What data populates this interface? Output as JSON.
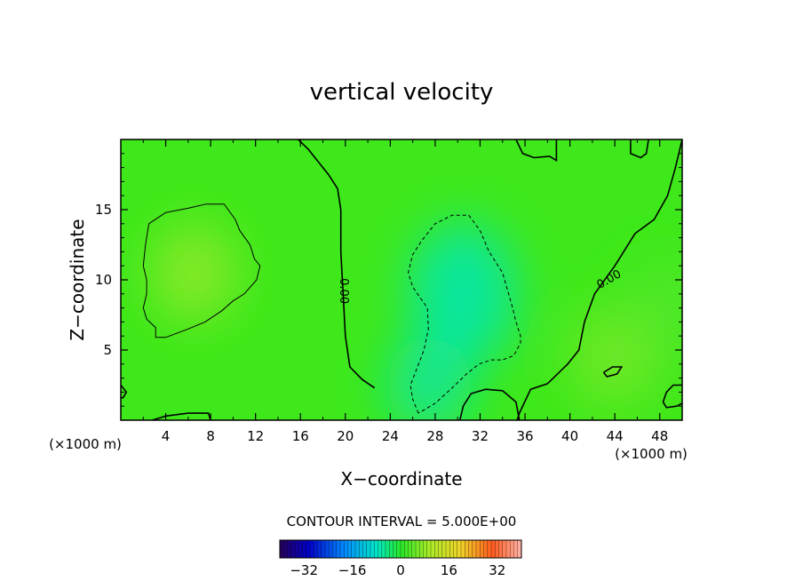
{
  "chart_data": {
    "type": "heatmap",
    "title": "vertical velocity",
    "xlabel": "X−coordinate",
    "ylabel": "Z−coordinate",
    "x_unit": "(×1000 m)",
    "z_unit": "(×1000 m)",
    "xlim": [
      0,
      50
    ],
    "ylim": [
      0,
      20
    ],
    "x_ticks": [
      4,
      8,
      12,
      16,
      20,
      24,
      28,
      32,
      36,
      40,
      44,
      48
    ],
    "x_tick_labels": [
      "4",
      "8",
      "12",
      "16",
      "20",
      "24",
      "28",
      "32",
      "36",
      "40",
      "44",
      "48"
    ],
    "y_ticks": [
      5,
      10,
      15
    ],
    "y_tick_labels": [
      "5",
      "10",
      "15"
    ],
    "contour_interval_text": "CONTOUR INTERVAL = 5.000E+00",
    "contour_labels": [
      {
        "text": "0.00",
        "x": 19.8,
        "z": 9.2,
        "angle": 90
      },
      {
        "text": "0.00",
        "x": 43.5,
        "z": 10.0,
        "angle": -30
      }
    ],
    "contours": [
      {
        "level": 0,
        "style": "solid",
        "points": [
          [
            15.8,
            20
          ],
          [
            16.7,
            19.3
          ],
          [
            17.5,
            18.5
          ],
          [
            18.5,
            17.5
          ],
          [
            19.3,
            16.5
          ],
          [
            19.6,
            15.0
          ],
          [
            19.6,
            12.0
          ],
          [
            19.8,
            9.0
          ],
          [
            20.0,
            6.0
          ],
          [
            20.4,
            3.8
          ],
          [
            21.5,
            2.9
          ],
          [
            22.6,
            2.3
          ]
        ]
      },
      {
        "level": 0,
        "style": "solid",
        "points": [
          [
            35.2,
            20
          ],
          [
            35.8,
            19.0
          ],
          [
            36.8,
            18.7
          ],
          [
            38.2,
            18.8
          ],
          [
            38.8,
            18.5
          ],
          [
            38.8,
            20
          ]
        ]
      },
      {
        "level": 0,
        "style": "solid",
        "points": [
          [
            45.4,
            20
          ],
          [
            45.4,
            19.0
          ],
          [
            46.3,
            18.7
          ],
          [
            46.8,
            19.0
          ],
          [
            47.0,
            20
          ]
        ]
      },
      {
        "level": 0,
        "style": "solid",
        "points": [
          [
            50,
            20
          ],
          [
            49.4,
            18.0
          ],
          [
            48.7,
            16.0
          ],
          [
            47.5,
            14.3
          ],
          [
            45.8,
            13.3
          ],
          [
            44.0,
            11.0
          ],
          [
            42.2,
            9.0
          ],
          [
            41.3,
            7.0
          ],
          [
            40.8,
            5.0
          ],
          [
            39.8,
            4.0
          ],
          [
            38.0,
            2.6
          ],
          [
            36.5,
            2.2
          ],
          [
            35.5,
            0.5
          ],
          [
            35.3,
            0
          ]
        ]
      },
      {
        "level": 5,
        "style": "solid",
        "points": [
          [
            2.5,
            14.0
          ],
          [
            4.0,
            14.8
          ],
          [
            6.0,
            15.1
          ],
          [
            7.6,
            15.4
          ],
          [
            9.2,
            15.4
          ],
          [
            10.2,
            14.3
          ],
          [
            10.6,
            13.5
          ],
          [
            11.5,
            12.5
          ],
          [
            11.9,
            11.5
          ],
          [
            12.4,
            11.0
          ],
          [
            12.1,
            10.0
          ],
          [
            11.0,
            9.0
          ],
          [
            10.0,
            8.5
          ],
          [
            9.0,
            7.8
          ],
          [
            7.5,
            7.0
          ],
          [
            6.0,
            6.5
          ],
          [
            4.0,
            5.9
          ],
          [
            3.1,
            5.9
          ],
          [
            3.1,
            6.6
          ],
          [
            2.3,
            7.2
          ],
          [
            2.0,
            8.0
          ],
          [
            2.3,
            9.0
          ],
          [
            2.3,
            10.0
          ],
          [
            2.0,
            11.0
          ],
          [
            2.2,
            12.5
          ],
          [
            2.5,
            14.0
          ]
        ]
      },
      {
        "level": 0,
        "style": "solid",
        "points": [
          [
            50,
            2.5
          ],
          [
            49.2,
            2.5
          ],
          [
            48.6,
            2.0
          ],
          [
            48.3,
            1.3
          ],
          [
            48.6,
            0.9
          ],
          [
            49.5,
            1.0
          ],
          [
            50,
            1.2
          ]
        ]
      },
      {
        "level": 0,
        "style": "solid",
        "points": [
          [
            0,
            2.5
          ],
          [
            0.5,
            2.0
          ],
          [
            0.2,
            1.6
          ],
          [
            0,
            1.6
          ]
        ]
      },
      {
        "level": 0,
        "style": "solid",
        "points": [
          [
            2.8,
            0
          ],
          [
            4.0,
            0.3
          ],
          [
            6.0,
            0.5
          ],
          [
            7.8,
            0.5
          ],
          [
            8.0,
            0
          ]
        ]
      },
      {
        "level": 0,
        "style": "solid",
        "points": [
          [
            30.2,
            0
          ],
          [
            30.5,
            1.0
          ],
          [
            31.2,
            1.9
          ],
          [
            32.5,
            2.2
          ],
          [
            34.0,
            2.1
          ],
          [
            35.2,
            1.3
          ],
          [
            35.5,
            0
          ]
        ]
      },
      {
        "level": 0,
        "style": "solid",
        "points": [
          [
            43.0,
            3.4
          ],
          [
            43.8,
            3.8
          ],
          [
            44.6,
            3.8
          ],
          [
            44.2,
            3.3
          ],
          [
            43.3,
            3.1
          ],
          [
            43.0,
            3.4
          ]
        ]
      },
      {
        "level": -5,
        "style": "dashed",
        "points": [
          [
            26.5,
            0.5
          ],
          [
            26.0,
            1.5
          ],
          [
            25.8,
            2.5
          ],
          [
            27.0,
            5.0
          ],
          [
            27.4,
            6.5
          ],
          [
            27.3,
            8.0
          ],
          [
            26.0,
            9.5
          ],
          [
            25.6,
            10.5
          ],
          [
            26.0,
            11.8
          ],
          [
            26.8,
            12.8
          ],
          [
            28.0,
            14.0
          ],
          [
            29.5,
            14.6
          ],
          [
            31.0,
            14.6
          ],
          [
            32.0,
            13.5
          ],
          [
            32.8,
            12.0
          ],
          [
            34.0,
            10.5
          ],
          [
            34.9,
            8.0
          ],
          [
            35.2,
            7.0
          ],
          [
            35.6,
            6.0
          ],
          [
            35.6,
            5.5
          ],
          [
            35.0,
            4.6
          ],
          [
            34.0,
            4.3
          ],
          [
            33.0,
            4.3
          ],
          [
            31.9,
            4.0
          ],
          [
            30.8,
            3.3
          ],
          [
            29.5,
            2.3
          ],
          [
            28.0,
            1.2
          ],
          [
            26.5,
            0.5
          ]
        ]
      }
    ],
    "field_hint": [
      {
        "x": 6.5,
        "z": 10.5,
        "value": 8
      },
      {
        "x": 30.5,
        "z": 9.0,
        "value": -7
      },
      {
        "x": 27.5,
        "z": 2.5,
        "value": -6
      },
      {
        "x": 44.0,
        "z": 4.5,
        "value": 6
      },
      {
        "x": 49.0,
        "z": 8.0,
        "value": 3
      }
    ],
    "colorbar": {
      "min": -40,
      "max": 40,
      "ticks": [
        -32,
        -16,
        0,
        16,
        32
      ],
      "tick_labels": [
        "−32",
        "−16",
        "0",
        "16",
        "32"
      ]
    },
    "grid": false,
    "legend": "none"
  }
}
